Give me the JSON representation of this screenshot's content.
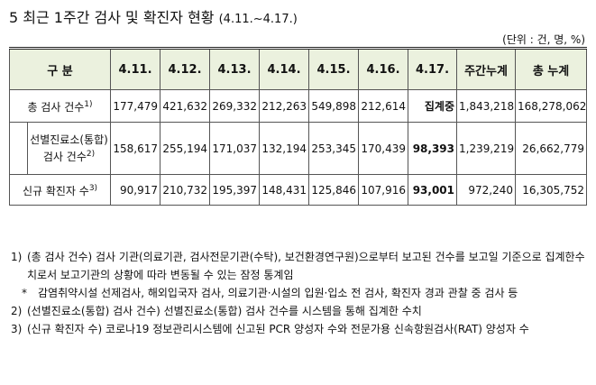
{
  "title": {
    "text": "5 최근 1주간 검사 및 확진자 현황",
    "period": "(4.11.~4.17.)"
  },
  "unit": "(단위 : 건, 명, %)",
  "table": {
    "header": [
      "구 분",
      "4.11.",
      "4.12.",
      "4.13.",
      "4.14.",
      "4.15.",
      "4.16.",
      "4.17.",
      "주간누계",
      "총 누계"
    ],
    "rows": [
      {
        "label": "총 검사 건수",
        "note": "1)",
        "values": [
          "177,479",
          "421,632",
          "269,332",
          "212,263",
          "549,898",
          "212,614",
          "집계중",
          "1,843,218",
          "168,278,062"
        ]
      },
      {
        "label": "선별진료소(통합) 검사 건수",
        "note": "2)",
        "values": [
          "158,617",
          "255,194",
          "171,037",
          "132,194",
          "253,345",
          "170,439",
          "98,393",
          "1,239,219",
          "26,662,779"
        ]
      },
      {
        "label": "신규 확진자 수",
        "note": "3)",
        "values": [
          "90,917",
          "210,732",
          "195,397",
          "148,431",
          "125,846",
          "107,916",
          "93,001",
          "972,240",
          "16,305,752"
        ]
      }
    ]
  },
  "notes": [
    {
      "marker": "1)",
      "text": "(총 검사 건수) 검사 기관(의료기관, 검사전문기관(수탁), 보건환경연구원)으로부터 보고된 건수를 보고일 기준으로 집계한수치로서 보고기관의 상황에 따라 변동될 수 있는 잠정 통계임"
    },
    {
      "marker": "*",
      "text": "감염취약시설 선제검사, 해외입국자 검사, 의료기관·시설의 입원·입소 전 검사, 확진자 경과 관찰 중 검사 등"
    },
    {
      "marker": "2)",
      "text": "(선별진료소(통합) 검사 건수) 선별진료소(통합) 검사 건수를 시스템을 통해 집계한 수치"
    },
    {
      "marker": "3)",
      "text": "(신규 확진자 수) 코로나19 정보관리시스템에 신고된 PCR 양성자 수와 전문가용 신속항원검사(RAT) 양성자 수"
    }
  ]
}
